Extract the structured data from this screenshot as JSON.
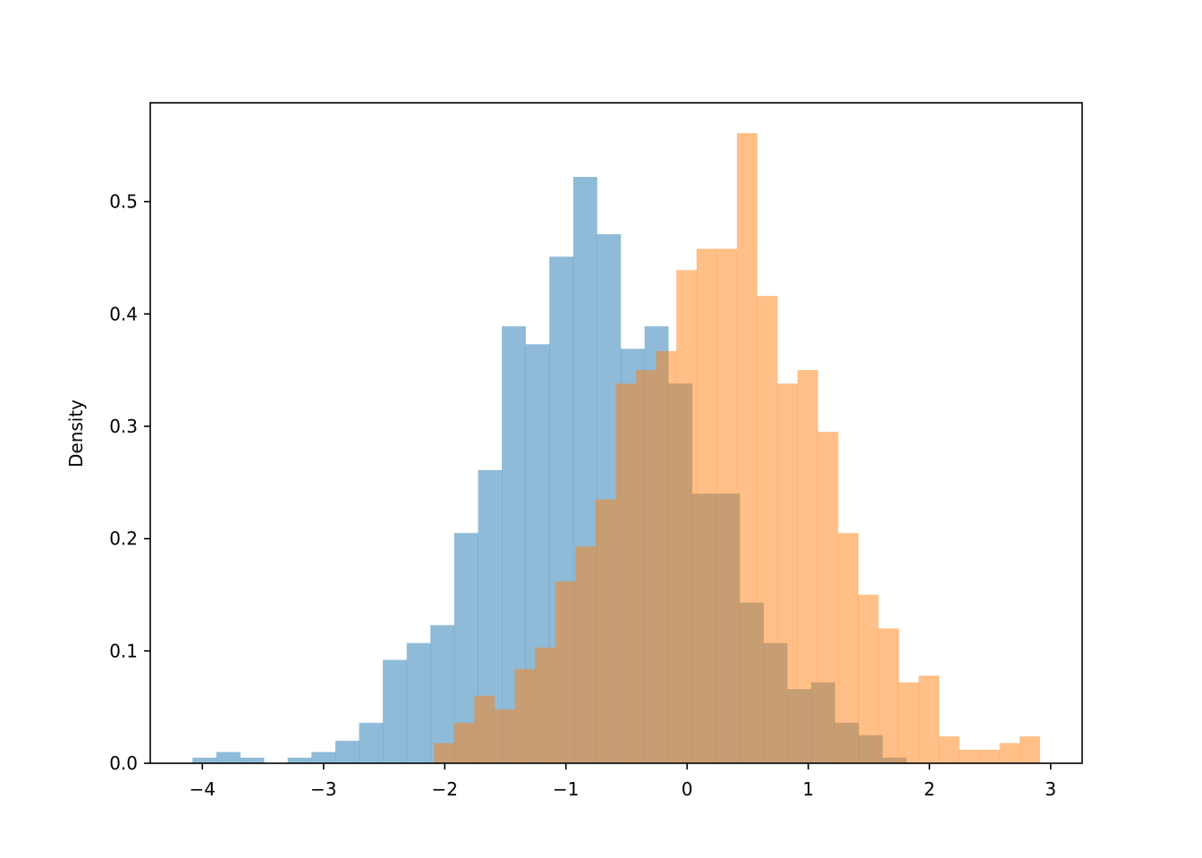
{
  "chart_data": {
    "type": "histogram",
    "title": "",
    "xlabel": "",
    "ylabel": "Density",
    "xlim": [
      -4.43,
      3.26
    ],
    "ylim": [
      0,
      0.588
    ],
    "xticks": [
      -4,
      -3,
      -2,
      -1,
      0,
      1,
      2,
      3
    ],
    "xtick_labels": [
      "−4",
      "−3",
      "−2",
      "−1",
      "0",
      "1",
      "2",
      "3"
    ],
    "yticks": [
      0.0,
      0.1,
      0.2,
      0.3,
      0.4,
      0.5
    ],
    "ytick_labels": [
      "0.0",
      "0.1",
      "0.2",
      "0.3",
      "0.4",
      "0.5"
    ],
    "grid": false,
    "legend": "none",
    "alpha": 0.5,
    "series": [
      {
        "color": "#1f77b4",
        "bin_edges": [
          -4.081,
          -3.885,
          -3.688,
          -3.492,
          -3.296,
          -3.1,
          -2.903,
          -2.707,
          -2.511,
          -2.314,
          -2.118,
          -1.922,
          -1.725,
          -1.529,
          -1.333,
          -1.137,
          -0.94,
          -0.744,
          -0.548,
          -0.351,
          -0.155,
          0.041,
          0.238,
          0.434,
          0.63,
          0.826,
          1.023,
          1.219,
          1.415,
          1.612,
          1.808
        ],
        "density": [
          0.005,
          0.01,
          0.005,
          0.0,
          0.005,
          0.01,
          0.02,
          0.036,
          0.092,
          0.107,
          0.123,
          0.205,
          0.261,
          0.389,
          0.373,
          0.451,
          0.522,
          0.471,
          0.369,
          0.389,
          0.338,
          0.24,
          0.24,
          0.143,
          0.107,
          0.066,
          0.072,
          0.036,
          0.025,
          0.005
        ]
      },
      {
        "color": "#ff7f0e",
        "bin_edges": [
          -2.089,
          -1.922,
          -1.756,
          -1.589,
          -1.422,
          -1.256,
          -1.089,
          -0.922,
          -0.756,
          -0.589,
          -0.422,
          -0.256,
          -0.089,
          0.078,
          0.245,
          0.411,
          0.578,
          0.745,
          0.911,
          1.078,
          1.245,
          1.411,
          1.578,
          1.745,
          1.911,
          2.078,
          2.245,
          2.411,
          2.578,
          2.745,
          2.911
        ],
        "density": [
          0.018,
          0.036,
          0.06,
          0.048,
          0.084,
          0.103,
          0.162,
          0.193,
          0.235,
          0.338,
          0.35,
          0.367,
          0.439,
          0.458,
          0.458,
          0.561,
          0.416,
          0.338,
          0.35,
          0.295,
          0.205,
          0.15,
          0.12,
          0.072,
          0.078,
          0.024,
          0.012,
          0.012,
          0.018,
          0.024
        ]
      }
    ]
  }
}
